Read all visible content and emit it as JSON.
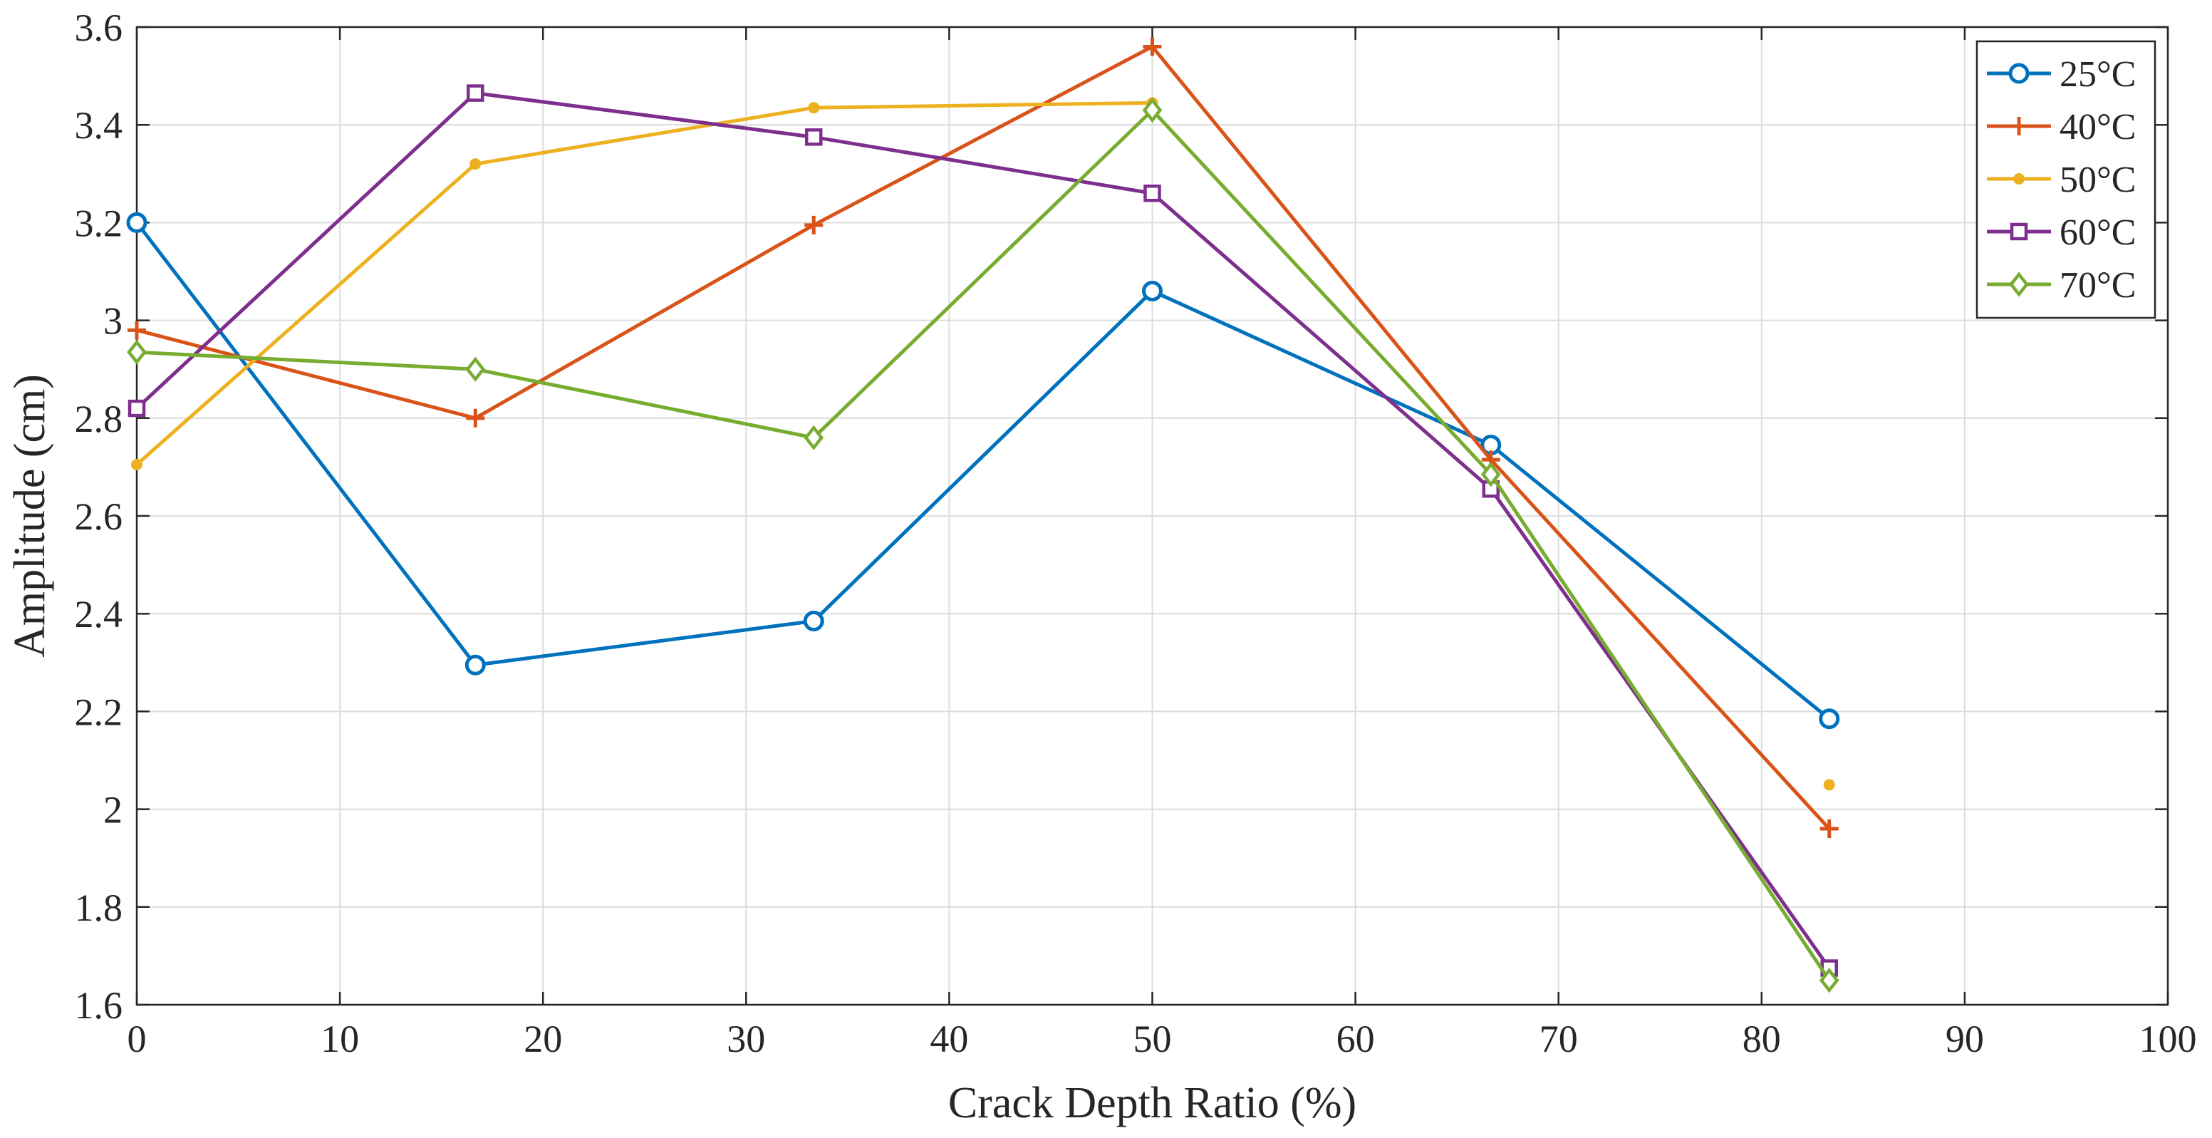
{
  "chart_data": {
    "type": "line",
    "title": "",
    "xlabel": "Crack Depth Ratio (%)",
    "ylabel": "Amplitude (cm)",
    "xlim": [
      0,
      100
    ],
    "ylim": [
      1.6,
      3.6
    ],
    "xticks": [
      0,
      10,
      20,
      30,
      40,
      50,
      60,
      70,
      80,
      90,
      100
    ],
    "xtick_labels": [
      "0",
      "10",
      "20",
      "30",
      "40",
      "50",
      "60",
      "70",
      "80",
      "90",
      "100"
    ],
    "yticks": [
      1.6,
      1.8,
      2.0,
      2.2,
      2.4,
      2.6,
      2.8,
      3.0,
      3.2,
      3.4,
      3.6
    ],
    "ytick_labels": [
      "1.6",
      "1.8",
      "2",
      "2.2",
      "2.4",
      "2.6",
      "2.8",
      "3",
      "3.2",
      "3.4",
      "3.6"
    ],
    "grid": true,
    "legend_position": "top-right",
    "x": [
      0,
      16.67,
      33.33,
      50,
      66.67,
      83.33
    ],
    "series": [
      {
        "name": "25°C",
        "color": "#0072BD",
        "marker": "circle",
        "values": [
          3.2,
          2.295,
          2.385,
          3.06,
          2.745,
          2.185
        ]
      },
      {
        "name": "40°C",
        "color": "#D95319",
        "marker": "plus",
        "values": [
          2.98,
          2.8,
          3.195,
          3.56,
          2.715,
          1.96
        ]
      },
      {
        "name": "50°C",
        "color": "#EDB120",
        "marker": "dot",
        "values": [
          2.705,
          3.32,
          3.435,
          3.445,
          null,
          2.05
        ]
      },
      {
        "name": "60°C",
        "color": "#7E2F8E",
        "marker": "square",
        "values": [
          2.82,
          3.465,
          3.375,
          3.26,
          2.655,
          1.675
        ]
      },
      {
        "name": "70°C",
        "color": "#77AC30",
        "marker": "diamond",
        "values": [
          2.935,
          2.9,
          2.76,
          3.43,
          2.685,
          1.65
        ]
      }
    ]
  }
}
